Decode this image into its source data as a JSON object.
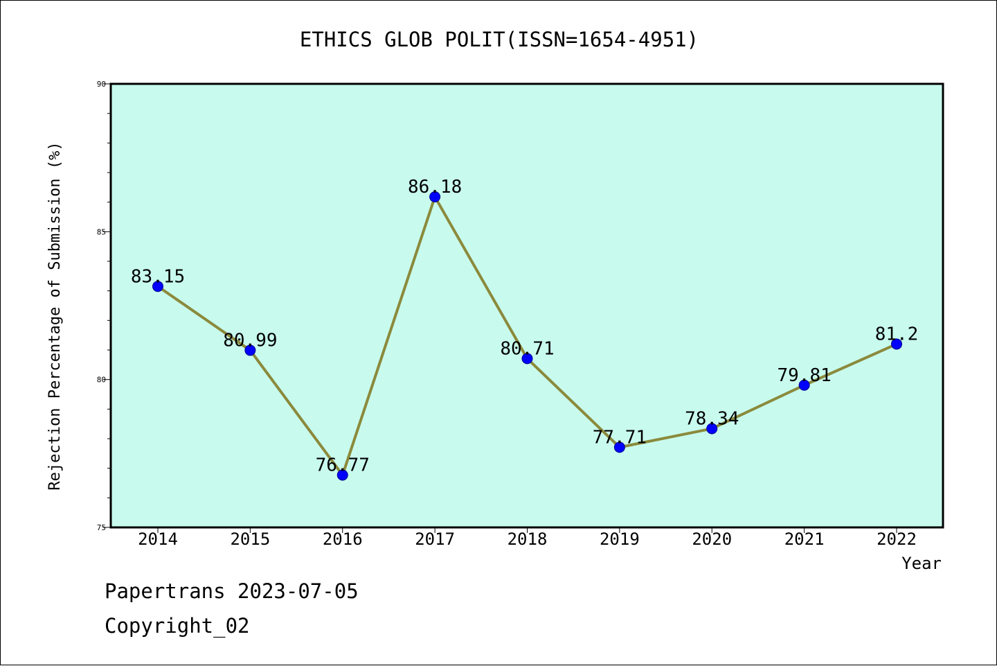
{
  "chart_data": {
    "type": "line",
    "title": "ETHICS GLOB POLIT(ISSN=1654-4951)",
    "xlabel": "Year",
    "ylabel": "Rejection Percentage of Submission (%)",
    "categories": [
      "2014",
      "2015",
      "2016",
      "2017",
      "2018",
      "2019",
      "2020",
      "2021",
      "2022"
    ],
    "values": [
      83.15,
      80.99,
      76.77,
      86.18,
      80.71,
      77.71,
      78.34,
      79.81,
      81.2
    ],
    "data_labels": [
      "83.15",
      "80.99",
      "76.77",
      "86.18",
      "80.71",
      "77.71",
      "78.34",
      "79.81",
      "81.2"
    ],
    "ylim": [
      75,
      90
    ],
    "yticks": [
      "75",
      "80",
      "85",
      "90"
    ],
    "grid": false,
    "plot_background": "#c8fbee",
    "line_color": "#8b8a3c",
    "marker_color": "#0000ff"
  },
  "footer": {
    "source_line": "Papertrans 2023-07-05",
    "copyright_line": "Copyright_02"
  }
}
